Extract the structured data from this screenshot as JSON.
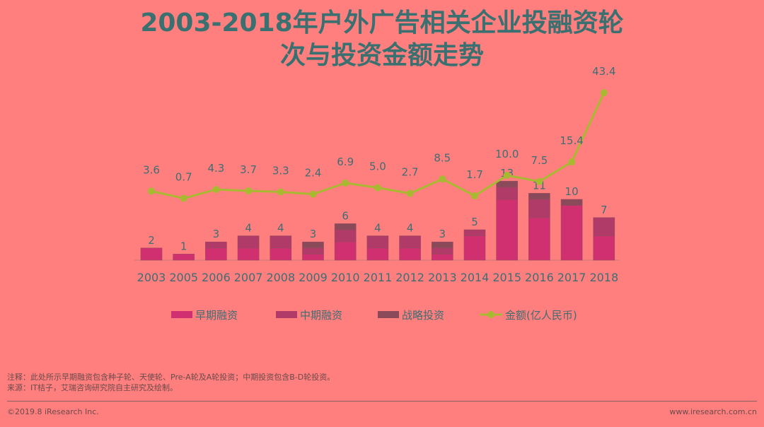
{
  "title_line1": "2003-2018年户外广告相关企业投融资轮",
  "title_line2": "次与投资金额走势",
  "chart_data": {
    "type": "bar",
    "categories": [
      "2003",
      "2005",
      "2006",
      "2007",
      "2008",
      "2009",
      "2010",
      "2011",
      "2012",
      "2013",
      "2014",
      "2015",
      "2016",
      "2017",
      "2018"
    ],
    "series": [
      {
        "name": "早期融资",
        "stack": "rounds",
        "values": [
          2,
          1,
          2,
          2,
          2,
          1,
          3,
          2,
          2,
          1,
          4,
          10,
          7,
          9,
          4
        ]
      },
      {
        "name": "中期融资",
        "stack": "rounds",
        "values": [
          0,
          0,
          1,
          2,
          2,
          1,
          2,
          2,
          2,
          1,
          1,
          2,
          3,
          0,
          3
        ]
      },
      {
        "name": "战略投资",
        "stack": "rounds",
        "values": [
          0,
          0,
          0,
          0,
          0,
          1,
          1,
          0,
          0,
          1,
          0,
          1,
          1,
          1,
          0
        ]
      },
      {
        "name": "金额(亿人民币)",
        "type": "line",
        "values": [
          3.6,
          0.7,
          4.3,
          3.7,
          3.3,
          2.4,
          6.9,
          5.0,
          2.7,
          8.5,
          1.7,
          10.0,
          7.5,
          15.4,
          43.4
        ],
        "labels": [
          "3.6",
          "0.7",
          "4.3",
          "3.7",
          "3.3",
          "2.4",
          "6.9",
          "5.0",
          "2.7",
          "8.5",
          "1.7",
          "10.0",
          "7.5",
          "15.4",
          "43.4"
        ]
      }
    ],
    "bar_totals": [
      2,
      1,
      3,
      4,
      4,
      3,
      6,
      4,
      4,
      3,
      5,
      13,
      11,
      10,
      7
    ],
    "legend": [
      "早期融资",
      "中期融资",
      "战略投资",
      "金额(亿人民币)"
    ],
    "legend_position": "bottom",
    "grid": false
  },
  "colors": {
    "early": "#D03070",
    "mid": "#B03A68",
    "strategic": "#8A4A5A",
    "line": "#A8B830",
    "axis_text": "#3E6E72",
    "label_text": "#3E6E72"
  },
  "notes": {
    "note": "注释：此处所示早期融资包含种子轮、天使轮、Pre-A轮及A轮投资；中期投资包含B-D轮投资。",
    "source": "来源：IT桔子，艾瑞咨询研究院自主研究及绘制。"
  },
  "footer": {
    "copyright": "©2019.8 iResearch Inc.",
    "url": "www.iresearch.com.cn"
  }
}
